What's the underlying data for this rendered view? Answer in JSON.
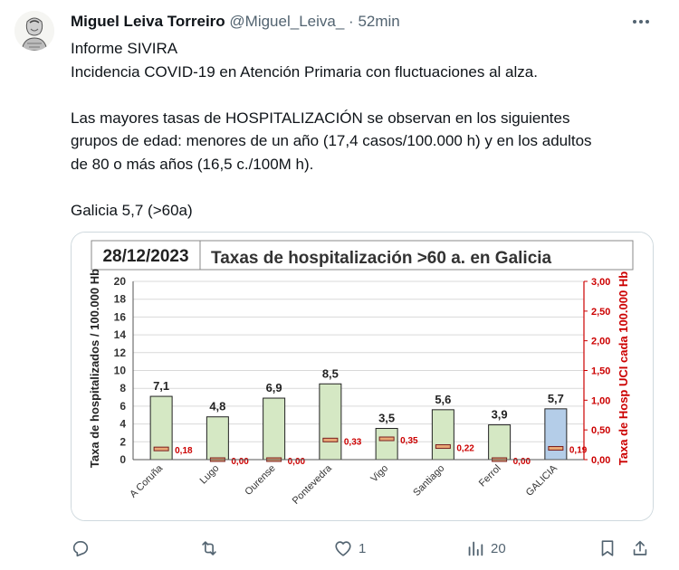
{
  "tweet": {
    "author_name": "Miguel Leiva Torreiro",
    "handle": "@Miguel_Leiva_",
    "separator": "·",
    "time": "52min",
    "lines": [
      "Informe SIVIRA",
      "Incidencia COVID-19 en Atención Primaria con fluctuaciones al alza.",
      "",
      "Las mayores tasas de HOSPITALIZACIÓN se observan en los siguientes",
      "grupos de edad: menores de un año (17,4 casos/100.000 h) y en los adultos",
      "de 80 o más años (16,5 c./100M h).",
      "",
      "Galicia 5,7 (>60a)"
    ]
  },
  "chart_data": {
    "type": "bar",
    "date": "28/12/2023",
    "title": "Taxas de hospitalización >60 a. en Galicia",
    "ylabel": "Taxa de hospitalizados / 100.000 Hb",
    "y2label": "Taxa de Hosp UCI cada 100.000 Hb",
    "ylim": [
      0,
      20
    ],
    "y2lim": [
      0,
      3
    ],
    "yticks": [
      "0",
      "2",
      "4",
      "6",
      "8",
      "10",
      "12",
      "14",
      "16",
      "18",
      "20"
    ],
    "y2ticks": [
      "0,00",
      "0,50",
      "1,00",
      "1,50",
      "2,00",
      "2,50",
      "3,00"
    ],
    "categories": [
      "A Coruña",
      "Lugo",
      "Ourense",
      "Pontevedra",
      "Vigo",
      "Santiago",
      "Ferrol",
      "GALICIA"
    ],
    "series": [
      {
        "values": [
          7.1,
          4.8,
          6.9,
          8.5,
          3.5,
          5.6,
          3.9,
          5.7
        ],
        "labels": [
          "7,1",
          "4,8",
          "6,9",
          "8,5",
          "3,5",
          "5,6",
          "3,9",
          "5,7"
        ]
      },
      {
        "values": [
          0.18,
          0.0,
          0.0,
          0.33,
          0.35,
          0.22,
          0.0,
          0.19
        ],
        "labels": [
          "0,18",
          "0,00",
          "0,00",
          "0,33",
          "0,35",
          "0,22",
          "0,00",
          "0,19"
        ]
      }
    ],
    "colors": {
      "bar": "#d5e8c4",
      "highlight_bar": "#b4cde8",
      "uci_marker": "#e8a876",
      "right_axis": "#cc0000"
    },
    "grid": true
  },
  "actions": {
    "reply_icon": "reply-icon",
    "retweet_icon": "retweet-icon",
    "like_count": "1",
    "views_count": "20"
  }
}
